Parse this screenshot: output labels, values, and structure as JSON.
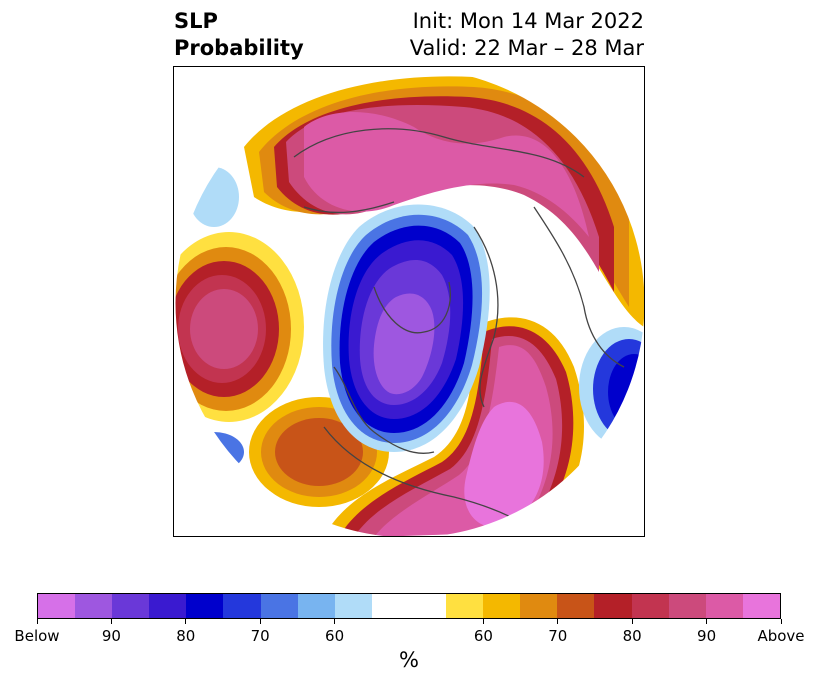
{
  "title": {
    "left_line1": "SLP",
    "left_line2": "Probability",
    "right_line1": "Init: Mon 14 Mar 2022",
    "right_line2": "Valid: 22 Mar – 28 Mar"
  },
  "colorbar": {
    "colors": [
      "#d670e8",
      "#9e57e0",
      "#6a38d8",
      "#3a1ad0",
      "#0000cc",
      "#2438dc",
      "#4a74e4",
      "#78b4f0",
      "#b0dcf8",
      "#ffffff",
      "#ffffff",
      "#ffe040",
      "#f4b800",
      "#e08a10",
      "#c85418",
      "#b42028",
      "#c23450",
      "#cc4a7c",
      "#dc5aa6",
      "#e874dc"
    ],
    "ticks": [
      "Below",
      "90",
      "80",
      "70",
      "60",
      "60",
      "70",
      "80",
      "90",
      "Above"
    ],
    "unit": "%"
  },
  "map": {
    "background": "#ffffff",
    "coast_color": "#444444"
  }
}
